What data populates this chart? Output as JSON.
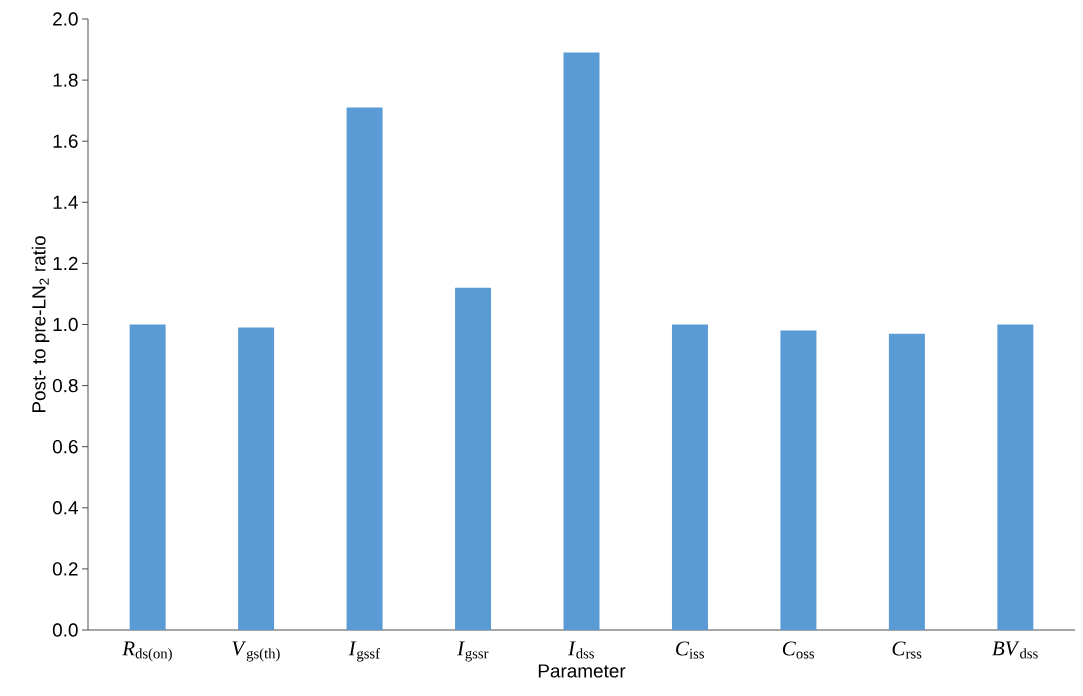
{
  "chart_data": {
    "type": "bar",
    "xlabel": "Parameter",
    "ylabel": "Post- to pre-LN$_{2}$ ratio",
    "categories": [
      "*R*$_{ds(on)}$",
      "*V*$_{gs(th)}$",
      "*I*$_{gssf}$",
      "*I*$_{gssr}$",
      "*I*$_{dss}$",
      "*C*$_{iss}$",
      "*C*$_{oss}$",
      "*C*$_{rss}$",
      "*BV*$_{dss}$"
    ],
    "values": [
      1.0,
      0.99,
      1.71,
      1.12,
      1.89,
      1.0,
      0.98,
      0.97,
      1.0
    ],
    "color": "#5b9bd5",
    "ylim": [
      0,
      2.0
    ],
    "yticks": [
      {
        "value": 0,
        "label": "0.0"
      },
      {
        "value": 0.2,
        "label": "0.2"
      },
      {
        "value": 0.4,
        "label": "0.4"
      },
      {
        "value": 0.6,
        "label": "0.6"
      },
      {
        "value": 0.8,
        "label": "0.8"
      },
      {
        "value": 1.0,
        "label": "1.0"
      },
      {
        "value": 1.2,
        "label": "1.2"
      },
      {
        "value": 1.4,
        "label": "1.4"
      },
      {
        "value": 1.6,
        "label": "1.6"
      },
      {
        "value": 1.8,
        "label": "1.8"
      },
      {
        "value": 2.0,
        "label": "2.0"
      }
    ],
    "grid": false
  }
}
